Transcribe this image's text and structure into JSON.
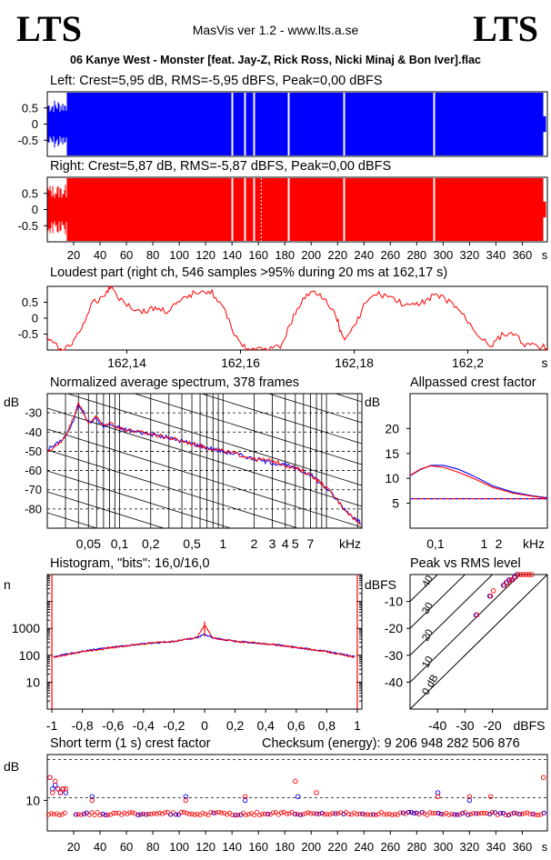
{
  "header": {
    "logo_left": "LTS",
    "logo_right": "LTS",
    "app_title": "MasVis ver 1.2 - www.lts.a.se",
    "track": "06 Kanye West - Monster [feat. Jay-Z, Rick Ross, Nicki Minaj & Bon Iver].flac"
  },
  "colors": {
    "left": "#0000ff",
    "right": "#ff0000",
    "axes": "#000000",
    "grid": "#000000"
  },
  "chart_data": [
    {
      "id": "left-waveform",
      "type": "area",
      "title": "Left: Crest=5,95 dB, RMS=-5,95 dBFS, Peak=0,00 dBFS",
      "series": [
        {
          "name": "Left",
          "color": "#0000ff"
        }
      ],
      "yticks": [
        "0.5",
        "0",
        "-0.5"
      ],
      "ylim": [
        -1,
        1
      ],
      "xlim": [
        0,
        379
      ],
      "dips_s": [
        140,
        150,
        157,
        183,
        225,
        293
      ],
      "quiet_region_s": [
        0,
        15
      ]
    },
    {
      "id": "right-waveform",
      "type": "area",
      "title": "Right: Crest=5,87 dB, RMS=-5,87 dBFS, Peak=0,00 dBFS",
      "series": [
        {
          "name": "Right",
          "color": "#ff0000"
        }
      ],
      "yticks": [
        "0.5",
        "0",
        "-0.5"
      ],
      "xticks": [
        "20",
        "40",
        "60",
        "80",
        "100",
        "120",
        "140",
        "160",
        "180",
        "200",
        "220",
        "240",
        "260",
        "280",
        "300",
        "320",
        "340",
        "360",
        "s"
      ],
      "ylim": [
        -1,
        1
      ],
      "xlim": [
        0,
        379
      ],
      "marker_s": 162.17,
      "dips_s": [
        140,
        150,
        157,
        183,
        225,
        293
      ],
      "quiet_region_s": [
        0,
        15
      ]
    },
    {
      "id": "loudest-part",
      "type": "line",
      "title": "Loudest part (right ch, 546 samples >95% during 20 ms at 162,17 s)",
      "xticks": [
        "162,14",
        "162,16",
        "162,18",
        "162,2",
        "s"
      ],
      "yticks": [
        "0.5",
        "0",
        "-0.5"
      ],
      "xlim": [
        162.126,
        162.214
      ],
      "ylim": [
        -1,
        1
      ],
      "series": [
        {
          "name": "Right",
          "color": "#ff0000",
          "points": [
            [
              162.126,
              -0.62
            ],
            [
              162.128,
              -0.95
            ],
            [
              162.13,
              -0.9
            ],
            [
              162.132,
              -0.3
            ],
            [
              162.134,
              0.45
            ],
            [
              162.136,
              0.72
            ],
            [
              162.137,
              1.0
            ],
            [
              162.139,
              0.58
            ],
            [
              162.141,
              0.32
            ],
            [
              162.143,
              0.2
            ],
            [
              162.145,
              0.32
            ],
            [
              162.147,
              0.22
            ],
            [
              162.149,
              0.45
            ],
            [
              162.151,
              0.7
            ],
            [
              162.153,
              0.9
            ],
            [
              162.155,
              0.8
            ],
            [
              162.157,
              0.3
            ],
            [
              162.159,
              -0.5
            ],
            [
              162.161,
              -1.0
            ],
            [
              162.163,
              -1.0
            ],
            [
              162.165,
              -1.0
            ],
            [
              162.167,
              -0.9
            ],
            [
              162.169,
              -0.1
            ],
            [
              162.171,
              0.6
            ],
            [
              162.173,
              0.85
            ],
            [
              162.175,
              0.62
            ],
            [
              162.177,
              0.0
            ],
            [
              162.178,
              -0.65
            ],
            [
              162.18,
              -0.3
            ],
            [
              162.182,
              0.5
            ],
            [
              162.184,
              0.75
            ],
            [
              162.186,
              0.7
            ],
            [
              162.188,
              0.5
            ],
            [
              162.19,
              0.35
            ],
            [
              162.192,
              0.5
            ],
            [
              162.194,
              0.72
            ],
            [
              162.196,
              0.6
            ],
            [
              162.198,
              0.35
            ],
            [
              162.2,
              -0.1
            ],
            [
              162.202,
              -0.55
            ],
            [
              162.204,
              -0.85
            ],
            [
              162.206,
              -0.55
            ],
            [
              162.208,
              -0.45
            ],
            [
              162.21,
              -0.82
            ],
            [
              162.212,
              -0.9
            ],
            [
              162.214,
              -0.92
            ]
          ]
        }
      ]
    },
    {
      "id": "spectrum",
      "type": "line",
      "title": "Normalized average spectrum, 378 frames",
      "ylabel": "dB",
      "xscale": "log",
      "xlim": [
        0.02,
        22
      ],
      "ylim": [
        -90,
        -20
      ],
      "xticks": [
        "0,05",
        "0,1",
        "0,2",
        "0,5",
        "1",
        "2",
        "3",
        "4",
        "5",
        "7",
        "kHz"
      ],
      "yticks": [
        "-30",
        "-40",
        "-50",
        "-60",
        "-70",
        "-80"
      ],
      "series": [
        {
          "name": "Left",
          "color": "#0000ff",
          "points": [
            [
              0.02,
              -49
            ],
            [
              0.025,
              -46
            ],
            [
              0.03,
              -42
            ],
            [
              0.035,
              -36
            ],
            [
              0.04,
              -25
            ],
            [
              0.045,
              -30
            ],
            [
              0.05,
              -35
            ],
            [
              0.06,
              -33
            ],
            [
              0.07,
              -37
            ],
            [
              0.08,
              -36
            ],
            [
              0.1,
              -38
            ],
            [
              0.15,
              -40
            ],
            [
              0.2,
              -41
            ],
            [
              0.3,
              -43
            ],
            [
              0.5,
              -46
            ],
            [
              0.7,
              -48
            ],
            [
              1,
              -50
            ],
            [
              1.5,
              -52
            ],
            [
              2,
              -54
            ],
            [
              3,
              -56
            ],
            [
              4,
              -57
            ],
            [
              5,
              -59
            ],
            [
              7,
              -62
            ],
            [
              10,
              -69
            ],
            [
              15,
              -80
            ],
            [
              20,
              -86
            ],
            [
              22,
              -88
            ]
          ]
        },
        {
          "name": "Right",
          "color": "#ff0000",
          "points": [
            [
              0.02,
              -50
            ],
            [
              0.025,
              -47
            ],
            [
              0.03,
              -42
            ],
            [
              0.035,
              -34
            ],
            [
              0.04,
              -24
            ],
            [
              0.045,
              -31
            ],
            [
              0.05,
              -35
            ],
            [
              0.06,
              -32
            ],
            [
              0.07,
              -37
            ],
            [
              0.08,
              -35
            ],
            [
              0.1,
              -38
            ],
            [
              0.15,
              -40
            ],
            [
              0.2,
              -41
            ],
            [
              0.3,
              -43
            ],
            [
              0.5,
              -46
            ],
            [
              0.7,
              -48
            ],
            [
              1,
              -50
            ],
            [
              1.5,
              -52
            ],
            [
              2,
              -54
            ],
            [
              3,
              -55
            ],
            [
              4,
              -57
            ],
            [
              5,
              -59
            ],
            [
              7,
              -62
            ],
            [
              10,
              -69
            ],
            [
              15,
              -80
            ],
            [
              20,
              -87
            ],
            [
              22,
              -89
            ]
          ]
        }
      ]
    },
    {
      "id": "allpass-crest",
      "type": "line",
      "title": "Allpassed crest factor",
      "ylabel": "dB",
      "xscale": "log",
      "xlim": [
        0.03,
        20
      ],
      "ylim": [
        0,
        27
      ],
      "xticks": [
        "0,1",
        "1",
        "2",
        "kHz"
      ],
      "yticks": [
        "20",
        "15",
        "10",
        "5"
      ],
      "series": [
        {
          "name": "Left",
          "color": "#0000ff",
          "points": [
            [
              0.03,
              10.5
            ],
            [
              0.05,
              11.8
            ],
            [
              0.08,
              12.6
            ],
            [
              0.15,
              12.6
            ],
            [
              0.3,
              11.8
            ],
            [
              0.6,
              10.5
            ],
            [
              1.5,
              8.5
            ],
            [
              4,
              7.2
            ],
            [
              10,
              6.5
            ],
            [
              20,
              6.1
            ]
          ],
          "flat": 5.9
        },
        {
          "name": "Right",
          "color": "#ff0000",
          "points": [
            [
              0.03,
              10.6
            ],
            [
              0.05,
              11.9
            ],
            [
              0.08,
              12.5
            ],
            [
              0.15,
              12.2
            ],
            [
              0.3,
              11.2
            ],
            [
              0.6,
              10.0
            ],
            [
              1.5,
              8.2
            ],
            [
              4,
              7.0
            ],
            [
              10,
              6.4
            ],
            [
              20,
              6.0
            ]
          ],
          "flat": 5.9
        }
      ]
    },
    {
      "id": "histogram",
      "type": "line",
      "title": "Histogram, \"bits\": 16,0/16,0",
      "ylabel": "n",
      "yscale": "log",
      "xlim": [
        -1.03,
        1.03
      ],
      "ylim": [
        1,
        100000
      ],
      "xticks": [
        "-1",
        "-0,8",
        "-0,6",
        "-0,4",
        "-0,2",
        "0",
        "0,2",
        "0,4",
        "0,6",
        "0,8",
        "1"
      ],
      "yticks": [
        "1000",
        "100",
        "10"
      ],
      "series": [
        {
          "name": "Left",
          "color": "#0000ff",
          "points": [
            [
              -0.99,
              90
            ],
            [
              -0.8,
              140
            ],
            [
              -0.6,
              200
            ],
            [
              -0.4,
              270
            ],
            [
              -0.2,
              330
            ],
            [
              -0.05,
              450
            ],
            [
              0,
              600
            ],
            [
              0.05,
              450
            ],
            [
              0.2,
              330
            ],
            [
              0.4,
              270
            ],
            [
              0.6,
              200
            ],
            [
              0.8,
              140
            ],
            [
              0.99,
              90
            ]
          ]
        },
        {
          "name": "Right",
          "color": "#ff0000",
          "points": [
            [
              -0.99,
              85
            ],
            [
              -0.8,
              135
            ],
            [
              -0.6,
              195
            ],
            [
              -0.4,
              265
            ],
            [
              -0.2,
              330
            ],
            [
              -0.05,
              450
            ],
            [
              0,
              1400
            ],
            [
              0.05,
              450
            ],
            [
              0.2,
              330
            ],
            [
              0.4,
              265
            ],
            [
              0.6,
              195
            ],
            [
              0.8,
              135
            ],
            [
              0.99,
              85
            ]
          ]
        }
      ],
      "edge_spikes": [
        -1,
        1
      ]
    },
    {
      "id": "peak-vs-rms",
      "type": "scatter",
      "title": "Peak vs RMS level",
      "ylabel": "dBFS",
      "xlabel": "dBFS",
      "xlim": [
        -50,
        0
      ],
      "ylim": [
        -50,
        0
      ],
      "xticks": [
        "-40",
        "-30",
        "-20"
      ],
      "yticks": [
        "-10",
        "-20",
        "-30",
        "-40"
      ],
      "crest_lines": [
        "40",
        "30",
        "20",
        "10",
        "0 dB"
      ],
      "series": [
        {
          "name": "Left",
          "color": "#0000ff",
          "points": [
            [
              -15,
              -3
            ],
            [
              -14,
              -2
            ],
            [
              -13,
              -2
            ],
            [
              -12,
              -1
            ],
            [
              -11,
              0
            ],
            [
              -16,
              -4
            ],
            [
              -21,
              -8
            ],
            [
              -26,
              -15
            ]
          ]
        },
        {
          "name": "Right",
          "color": "#ff0000",
          "points": [
            [
              -15,
              -3
            ],
            [
              -14,
              -2
            ],
            [
              -13,
              -2
            ],
            [
              -12,
              -1
            ],
            [
              -11,
              0
            ],
            [
              -10,
              0
            ],
            [
              -9,
              0
            ],
            [
              -8,
              0
            ],
            [
              -7,
              0
            ],
            [
              -6,
              0
            ],
            [
              -16,
              -4
            ],
            [
              -21,
              -8
            ],
            [
              -26,
              -15
            ],
            [
              -20,
              -6
            ]
          ]
        }
      ]
    },
    {
      "id": "short-term-crest",
      "type": "scatter",
      "title": "Short term (1 s) crest factor",
      "ylabel": "dB",
      "xlim": [
        0,
        379
      ],
      "ylim": [
        2,
        22
      ],
      "xticks": [
        "20",
        "40",
        "60",
        "80",
        "100",
        "120",
        "140",
        "160",
        "180",
        "200",
        "220",
        "240",
        "260",
        "280",
        "300",
        "320",
        "340",
        "360",
        "s"
      ],
      "ytick": "10",
      "dashed_levels": [
        10,
        20
      ],
      "series": [
        {
          "name": "Left",
          "color": "#0000ff",
          "points": [
            [
              2,
              16
            ],
            [
              4,
              13
            ],
            [
              6,
              14
            ],
            [
              8,
              13
            ],
            [
              10,
              12
            ],
            [
              12,
              13
            ],
            [
              14,
              12
            ],
            [
              34,
              11
            ],
            [
              105,
              11
            ],
            [
              150,
              10
            ],
            [
              190,
              11
            ],
            [
              296,
              12
            ],
            [
              320,
              10
            ]
          ]
        },
        {
          "name": "Right",
          "color": "#ff0000",
          "points": [
            [
              2,
              16
            ],
            [
              4,
              12
            ],
            [
              6,
              15
            ],
            [
              8,
              13
            ],
            [
              10,
              12
            ],
            [
              12,
              13
            ],
            [
              14,
              13
            ],
            [
              34,
              10
            ],
            [
              105,
              10
            ],
            [
              150,
              11
            ],
            [
              188,
              15
            ],
            [
              204,
              12
            ],
            [
              296,
              11
            ],
            [
              320,
              11
            ],
            [
              336,
              11
            ],
            [
              376,
              16
            ]
          ]
        }
      ],
      "base_level": 6.5,
      "notes": "Checksum (energy):  9 206 948 282 506 876"
    }
  ]
}
